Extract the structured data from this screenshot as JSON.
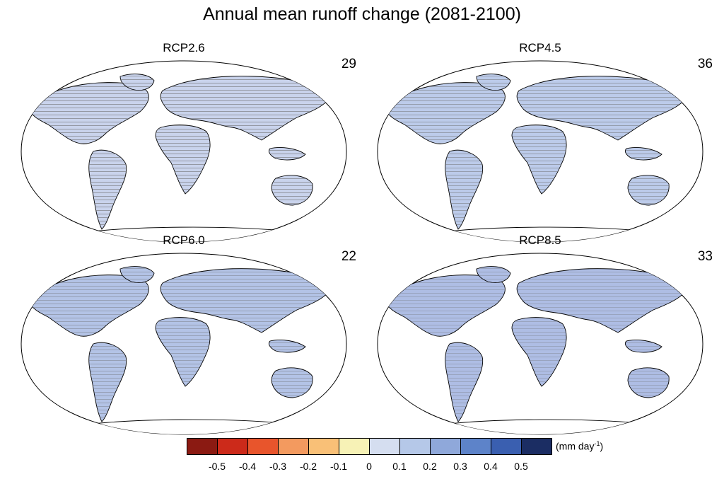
{
  "title": "Annual mean runoff change (2081-2100)",
  "panels": [
    {
      "name": "RCP2.6",
      "count": "29"
    },
    {
      "name": "RCP4.5",
      "count": "36"
    },
    {
      "name": "RCP6.0",
      "count": "22"
    },
    {
      "name": "RCP8.5",
      "count": "33"
    }
  ],
  "colorbar": {
    "colors": [
      "#8b1a12",
      "#cc2a1a",
      "#e8552c",
      "#f39a5f",
      "#f9c077",
      "#f7f2b6",
      "#d5def0",
      "#b5c8e8",
      "#8fa8da",
      "#5d83c9",
      "#3a5fb0",
      "#1b2d63"
    ],
    "labels": [
      "-0.5",
      "-0.4",
      "-0.3",
      "-0.2",
      "-0.1",
      "0",
      "0.1",
      "0.2",
      "0.3",
      "0.4",
      "0.5"
    ],
    "units": "(mm day",
    "units_exp": "-1",
    "units_close": ")"
  }
}
